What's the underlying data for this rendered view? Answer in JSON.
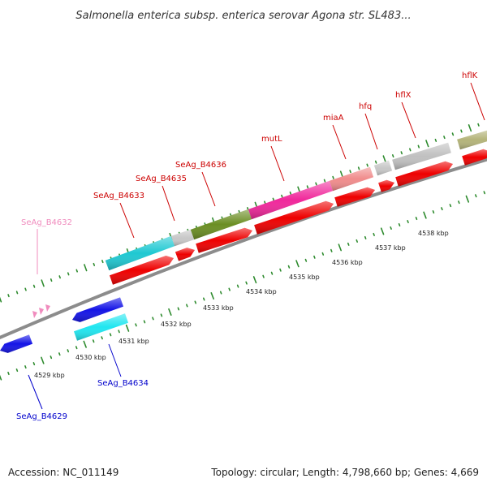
{
  "title": "Salmonella enterica subsp. enterica serovar Agona str. SL483...",
  "footer": {
    "accession": "Accession: NC_011149",
    "topology": "Topology: circular; Length: 4,798,660 bp; Genes: 4,669"
  },
  "colors": {
    "backbone": "#8c8c8c",
    "tick": "#2e8b2e",
    "label_red": "#cc0000",
    "label_blue": "#0000cc",
    "label_pink": "#f08cbe",
    "red_feature": "#ee0000",
    "blue_feature": "#1414e6",
    "cyan_feature": "#20e6f0"
  },
  "ticks": [
    {
      "label": "4529 kbp"
    },
    {
      "label": "4530 kbp"
    },
    {
      "label": "4531 kbp"
    },
    {
      "label": "4532 kbp"
    },
    {
      "label": "4533 kbp"
    },
    {
      "label": "4534 kbp"
    },
    {
      "label": "4535 kbp"
    },
    {
      "label": "4536 kbp"
    },
    {
      "label": "4537 kbp"
    },
    {
      "label": "4538 kbp"
    }
  ],
  "gene_labels": [
    {
      "name": "SeAg_B4632",
      "color": "#f08cbe"
    },
    {
      "name": "SeAg_B4633",
      "color": "#cc0000"
    },
    {
      "name": "SeAg_B4635",
      "color": "#cc0000"
    },
    {
      "name": "SeAg_B4636",
      "color": "#cc0000"
    },
    {
      "name": "mutL",
      "color": "#cc0000"
    },
    {
      "name": "miaA",
      "color": "#cc0000"
    },
    {
      "name": "hfq",
      "color": "#cc0000"
    },
    {
      "name": "hflX",
      "color": "#cc0000"
    },
    {
      "name": "hflK",
      "color": "#cc0000"
    },
    {
      "name": "SeAg_B4634",
      "color": "#0000cc"
    },
    {
      "name": "SeAg_B4629",
      "color": "#0000cc"
    }
  ]
}
